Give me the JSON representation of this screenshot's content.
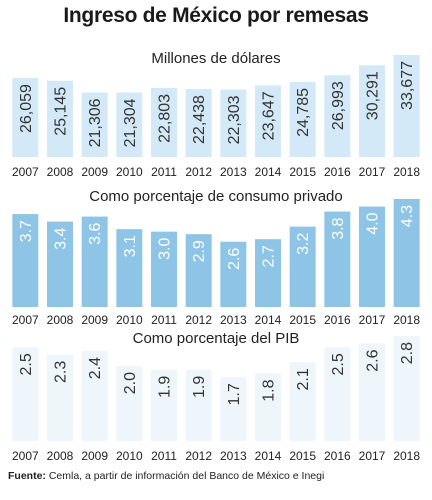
{
  "header": {
    "title": "Ingreso de México por remesas"
  },
  "source": {
    "label": "Fuente:",
    "text": " Cemla, a partir de información del Banco de México e Inegi"
  },
  "chart_data": [
    {
      "type": "bar",
      "subtitle": "Millones de dólares",
      "categories": [
        "2007",
        "2008",
        "2009",
        "2010",
        "2011",
        "2012",
        "2013",
        "2014",
        "2015",
        "2016",
        "2017",
        "2018"
      ],
      "values": [
        26059,
        25145,
        21306,
        21304,
        22803,
        22438,
        22303,
        23647,
        24785,
        26993,
        30291,
        33677
      ],
      "value_labels": [
        "26,059",
        "25,145",
        "21,306",
        "21,304",
        "22,803",
        "22,438",
        "22,303",
        "23,647",
        "24,785",
        "26,993",
        "30,291",
        "33,677"
      ],
      "color": "#d4e9f7",
      "label_color": "#333333",
      "ylim": [
        0,
        33677
      ]
    },
    {
      "type": "bar",
      "subtitle": "Como porcentaje de consumo privado",
      "categories": [
        "2007",
        "2008",
        "2009",
        "2010",
        "2011",
        "2012",
        "2013",
        "2014",
        "2015",
        "2016",
        "2017",
        "2018"
      ],
      "values": [
        3.7,
        3.4,
        3.6,
        3.1,
        3.0,
        2.9,
        2.6,
        2.7,
        3.2,
        3.8,
        4.0,
        4.3
      ],
      "value_labels": [
        "3.7",
        "3.4",
        "3.6",
        "3.1",
        "3.0",
        "2.9",
        "2.6",
        "2.7",
        "3.2",
        "3.8",
        "4.0",
        "4.3"
      ],
      "color": "#8ec5e6",
      "label_color": "#ffffff",
      "ylim": [
        0,
        4.3
      ]
    },
    {
      "type": "bar",
      "subtitle": "Como porcentaje del PIB",
      "categories": [
        "2007",
        "2008",
        "2009",
        "2010",
        "2011",
        "2012",
        "2013",
        "2014",
        "2015",
        "2016",
        "2017",
        "2018"
      ],
      "values": [
        2.5,
        2.3,
        2.4,
        2.0,
        1.9,
        1.9,
        1.7,
        1.8,
        2.1,
        2.5,
        2.6,
        2.8
      ],
      "value_labels": [
        "2.5",
        "2.3",
        "2.4",
        "2.0",
        "1.9",
        "1.9",
        "1.7",
        "1.8",
        "2.1",
        "2.5",
        "2.6",
        "2.8"
      ],
      "color": "#eef6fc",
      "label_color": "#333333",
      "ylim": [
        0,
        2.8
      ]
    }
  ]
}
